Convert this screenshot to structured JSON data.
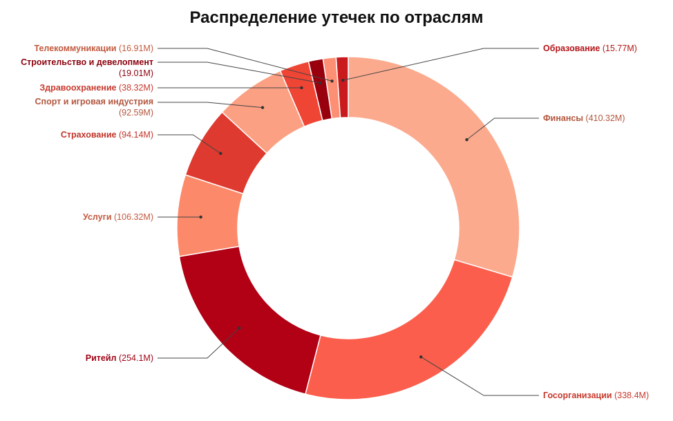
{
  "chart_data": {
    "type": "pie",
    "donut": true,
    "title": "Распределение утечек по отраслям",
    "slices": [
      {
        "name": "Финансы",
        "value": 410.32,
        "display": "(410.32M)",
        "color": "#FCAA8D",
        "label_color": "#B3563E"
      },
      {
        "name": "Госорганизации",
        "value": 338.4,
        "display": "(338.4M)",
        "color": "#FB5E4C",
        "label_color": "#C73A2E"
      },
      {
        "name": "Ритейл",
        "value": 254.1,
        "display": "(254.1M)",
        "color": "#B20015",
        "label_color": "#9E0013"
      },
      {
        "name": "Услуги",
        "value": 106.32,
        "display": "(106.32M)",
        "color": "#FC8A6A",
        "label_color": "#C25A3F"
      },
      {
        "name": "Страхование",
        "value": 94.14,
        "display": "(94.14M)",
        "color": "#DE3A2F",
        "label_color": "#C2352B"
      },
      {
        "name": "Спорт и игровая индустрия",
        "value": 92.59,
        "display": "(92.59M)",
        "color": "#FCA083",
        "label_color": "#B3563E"
      },
      {
        "name": "Здравоохранение",
        "value": 38.32,
        "display": "(38.32M)",
        "color": "#EF4535",
        "label_color": "#C73A2E"
      },
      {
        "name": "Строительство и девелопмент",
        "value": 19.01,
        "display": "(19.01M)",
        "color": "#99000D",
        "label_color": "#8A000C"
      },
      {
        "name": "Телекоммуникации",
        "value": 16.91,
        "display": "(16.91M)",
        "color": "#FC8F74",
        "label_color": "#C25A3F"
      },
      {
        "name": "Образование",
        "value": 15.77,
        "display": "(15.77M)",
        "color": "#C91A1D",
        "label_color": "#B3171A"
      }
    ]
  }
}
